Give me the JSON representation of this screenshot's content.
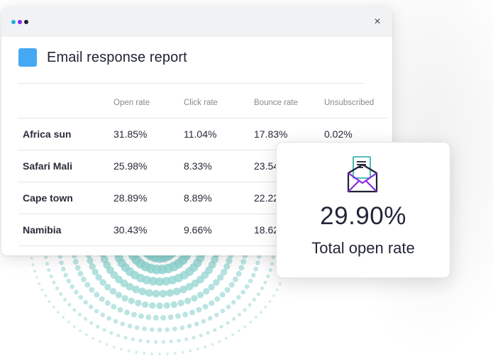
{
  "window": {
    "controls": [
      "dot-1",
      "dot-2",
      "dot-3"
    ],
    "control_colors": [
      "#19b3d6",
      "#8a2be2",
      "#1f2233"
    ],
    "close_label": "×"
  },
  "report": {
    "title": "Email response report",
    "accent_color": "#45a8f2",
    "columns": [
      "",
      "Open rate",
      "Click rate",
      "Bounce rate",
      "Unsubscribed"
    ],
    "rows": [
      {
        "name": "Africa sun",
        "open_rate": "31.85%",
        "click_rate": "11.04%",
        "bounce_rate": "17.83%",
        "unsubscribed": "0.02%"
      },
      {
        "name": "Safari Mali",
        "open_rate": "25.98%",
        "click_rate": "8.33%",
        "bounce_rate": "23.54%",
        "unsubscribed": ""
      },
      {
        "name": "Cape town",
        "open_rate": "28.89%",
        "click_rate": "8.89%",
        "bounce_rate": "22.22%",
        "unsubscribed": ""
      },
      {
        "name": "Namibia",
        "open_rate": "30.43%",
        "click_rate": "9.66%",
        "bounce_rate": "18.62%",
        "unsubscribed": ""
      }
    ]
  },
  "summary_card": {
    "icon": "open-envelope-icon",
    "value": "29.90%",
    "label": "Total open rate"
  },
  "decoration": {
    "dot_color": "#8fd3cf"
  }
}
